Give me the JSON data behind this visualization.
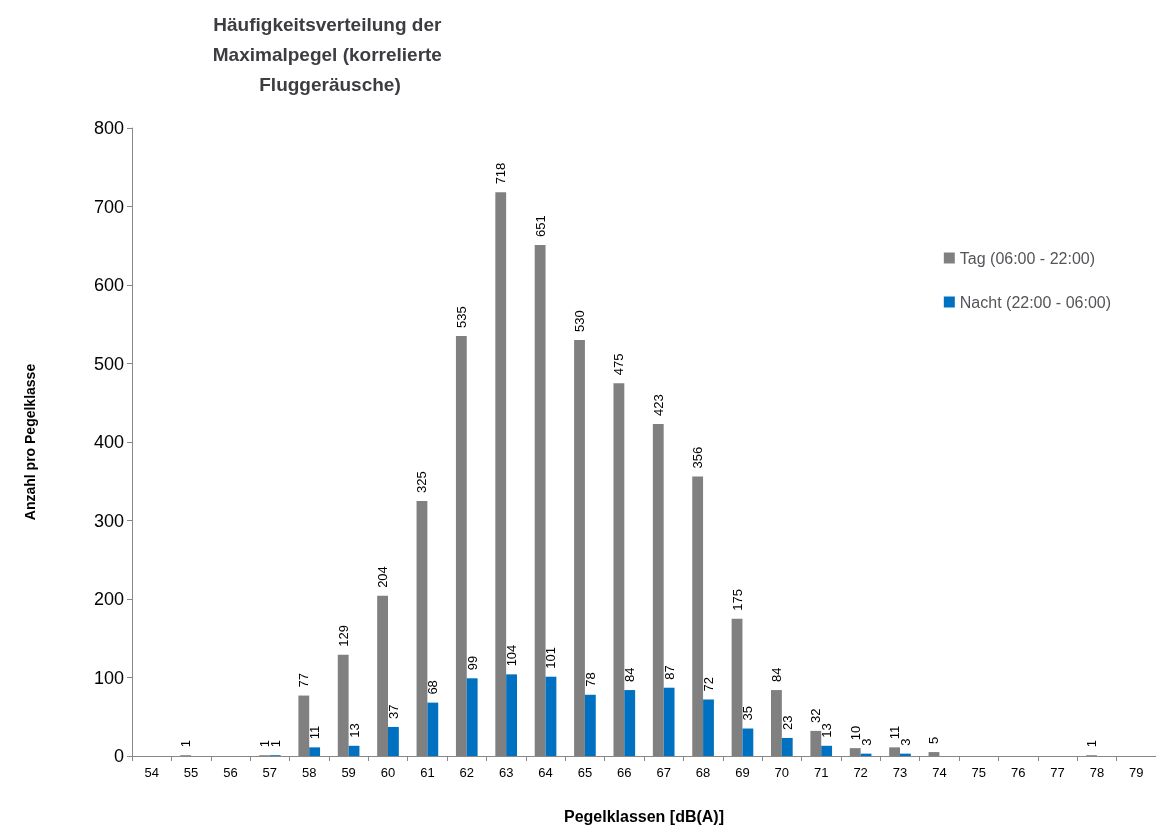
{
  "chart_data": {
    "type": "bar",
    "title": "Häufigkeitsverteilung der Maximalpegel (korrelierte Fluggeräusche)",
    "xlabel": "Pegelklassen [dB(A)]",
    "ylabel": "Anzahl pro Pegelklasse",
    "categories": [
      "54",
      "55",
      "56",
      "57",
      "58",
      "59",
      "60",
      "61",
      "62",
      "63",
      "64",
      "65",
      "66",
      "67",
      "68",
      "69",
      "70",
      "71",
      "72",
      "73",
      "74",
      "75",
      "76",
      "77",
      "78",
      "79"
    ],
    "series": [
      {
        "name": "Tag (06:00 - 22:00)",
        "color": "#808080",
        "values": [
          null,
          1,
          null,
          1,
          77,
          129,
          204,
          325,
          535,
          718,
          651,
          530,
          475,
          423,
          356,
          175,
          84,
          32,
          10,
          11,
          5,
          null,
          null,
          null,
          1,
          null
        ]
      },
      {
        "name": "Nacht (22:00 - 06:00)",
        "color": "#0070c0",
        "values": [
          null,
          null,
          null,
          1,
          11,
          13,
          37,
          68,
          99,
          104,
          101,
          78,
          84,
          87,
          72,
          35,
          23,
          13,
          3,
          3,
          null,
          null,
          null,
          null,
          null,
          null
        ]
      }
    ],
    "ylim": [
      0,
      800
    ],
    "yticks": [
      0,
      100,
      200,
      300,
      400,
      500,
      600,
      700,
      800
    ],
    "grid": false,
    "legend": "right",
    "data_labels": true
  }
}
